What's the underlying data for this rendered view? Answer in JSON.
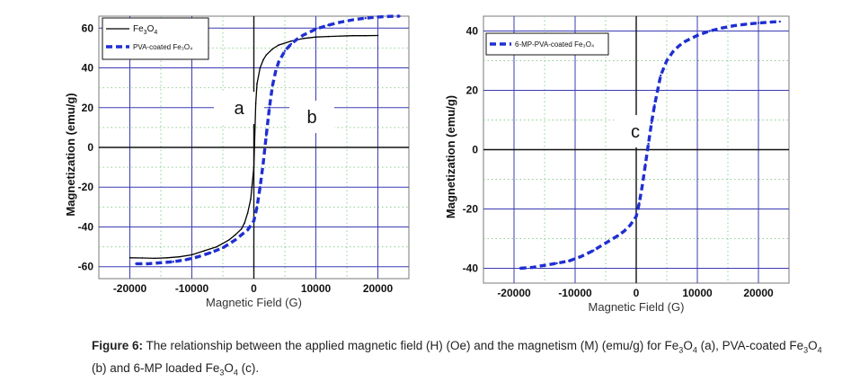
{
  "chart_data": [
    {
      "id": "left",
      "type": "line",
      "xlabel": "Magnetic Field (G)",
      "ylabel": "Magnetization (emu/g)",
      "xlim": [
        -25000,
        25000
      ],
      "ylim": [
        -66,
        66
      ],
      "xticks": [
        -20000,
        -10000,
        0,
        10000,
        20000
      ],
      "xtick_labels": [
        "-20000",
        "-10000",
        "0",
        "10000",
        "20000"
      ],
      "yticks": [
        -60,
        -40,
        -20,
        0,
        20,
        40,
        60
      ],
      "ytick_labels": [
        "-60",
        "-40",
        "-20",
        "0",
        "20",
        "40",
        "60"
      ],
      "grid": true,
      "legend": "top-left",
      "annotations": [
        {
          "text": "a",
          "x": -3000,
          "y": 24
        },
        {
          "text": "b",
          "x": 9000,
          "y": 18
        }
      ],
      "series": [
        {
          "name": "Fe3O4",
          "legend_text": "Fe",
          "legend_sub1": "3",
          "legend_mid": "O",
          "legend_sub2": "4",
          "style": "solid",
          "color": "#000000",
          "x": [
            -20000,
            -18000,
            -16000,
            -14000,
            -12000,
            -10000,
            -8000,
            -6000,
            -4000,
            -3000,
            -2000,
            -1500,
            -1000,
            -500,
            0,
            300,
            500,
            1000,
            1500,
            2000,
            3000,
            4000,
            6000,
            8000,
            10000,
            12000,
            14000,
            16000,
            18000,
            20000
          ],
          "y": [
            -55.5,
            -55.6,
            -55.8,
            -55.5,
            -55,
            -54,
            -52,
            -50,
            -46.5,
            -44,
            -41,
            -38,
            -33,
            -26,
            -10,
            22,
            32,
            40,
            44,
            46.5,
            49.5,
            51.5,
            53.5,
            54.8,
            55.5,
            55.8,
            56,
            56.2,
            56.2,
            56.3
          ]
        },
        {
          "name": "PVA-coated Fe3O4",
          "legend_text": "PVA-coated Fe₃O₄",
          "style": "dashed",
          "color": "#1f2fd1",
          "x": [
            -19000,
            -17000,
            -15000,
            -13000,
            -11000,
            -9000,
            -7000,
            -5000,
            -3000,
            -2000,
            -1000,
            0,
            500,
            1000,
            1500,
            2000,
            2500,
            3000,
            3500,
            4000,
            5000,
            6000,
            7000,
            8000,
            10000,
            12000,
            14000,
            16000,
            18000,
            20000,
            22000,
            23500
          ],
          "y": [
            -58.5,
            -58.5,
            -58,
            -57.5,
            -56.5,
            -55,
            -53,
            -50.5,
            -46.5,
            -44,
            -41.5,
            -37,
            -30,
            -20,
            -8,
            6,
            20,
            31,
            38,
            43,
            48.5,
            52,
            54.5,
            56.5,
            59.5,
            61.5,
            63,
            64.2,
            65,
            65.6,
            65.9,
            66
          ]
        }
      ]
    },
    {
      "id": "right",
      "type": "line",
      "xlabel": "Magnetic Field (G)",
      "ylabel": "Magnetization (emu/g)",
      "xlim": [
        -25000,
        25000
      ],
      "ylim": [
        -45,
        45
      ],
      "xticks": [
        -20000,
        -10000,
        0,
        10000,
        20000
      ],
      "xtick_labels": [
        "-20000",
        "-10000",
        "0",
        "10000",
        "20000"
      ],
      "yticks": [
        -40,
        -20,
        0,
        20,
        40
      ],
      "ytick_labels": [
        "-40",
        "-20",
        "0",
        "20",
        "40"
      ],
      "grid": true,
      "legend": "top-left",
      "annotations": [
        {
          "text": "c",
          "x": 0,
          "y": 7
        }
      ],
      "series": [
        {
          "name": "6-MP-PVA-coated Fe3O4",
          "legend_text": "6-MP-PVA-coated Fe₃O₄",
          "style": "dashed",
          "color": "#1f2fd1",
          "x": [
            -19000,
            -17000,
            -15000,
            -13000,
            -11000,
            -9000,
            -7000,
            -5000,
            -3000,
            -2000,
            -1000,
            0,
            500,
            1000,
            1500,
            2000,
            2500,
            3000,
            3500,
            4000,
            5000,
            6000,
            7000,
            8000,
            10000,
            12000,
            14000,
            16000,
            18000,
            20000,
            22000,
            23500
          ],
          "y": [
            -40,
            -39.7,
            -39,
            -38.3,
            -37.5,
            -36,
            -34,
            -31.5,
            -29,
            -27.5,
            -25.5,
            -22.5,
            -18,
            -12,
            -5,
            2,
            9,
            15,
            20,
            25,
            30,
            33,
            35,
            36.5,
            38.5,
            40,
            41,
            41.8,
            42.3,
            42.7,
            43,
            43.2
          ]
        }
      ]
    }
  ],
  "caption": {
    "label": "Figure 6:",
    "t1": " The relationship between the applied magnetic field (H) (Oe) and the magnetism (M) (emu/g) for Fe",
    "s1": "3",
    "t2": "O",
    "s2": "4",
    "t3": " (a), PVA-coated Fe",
    "s3": "3",
    "t4": "O",
    "s4": "4",
    "t5": " (b) and 6-MP loaded Fe",
    "s5": "3",
    "t6": "O",
    "s6": "4",
    "t7": " (c)."
  }
}
